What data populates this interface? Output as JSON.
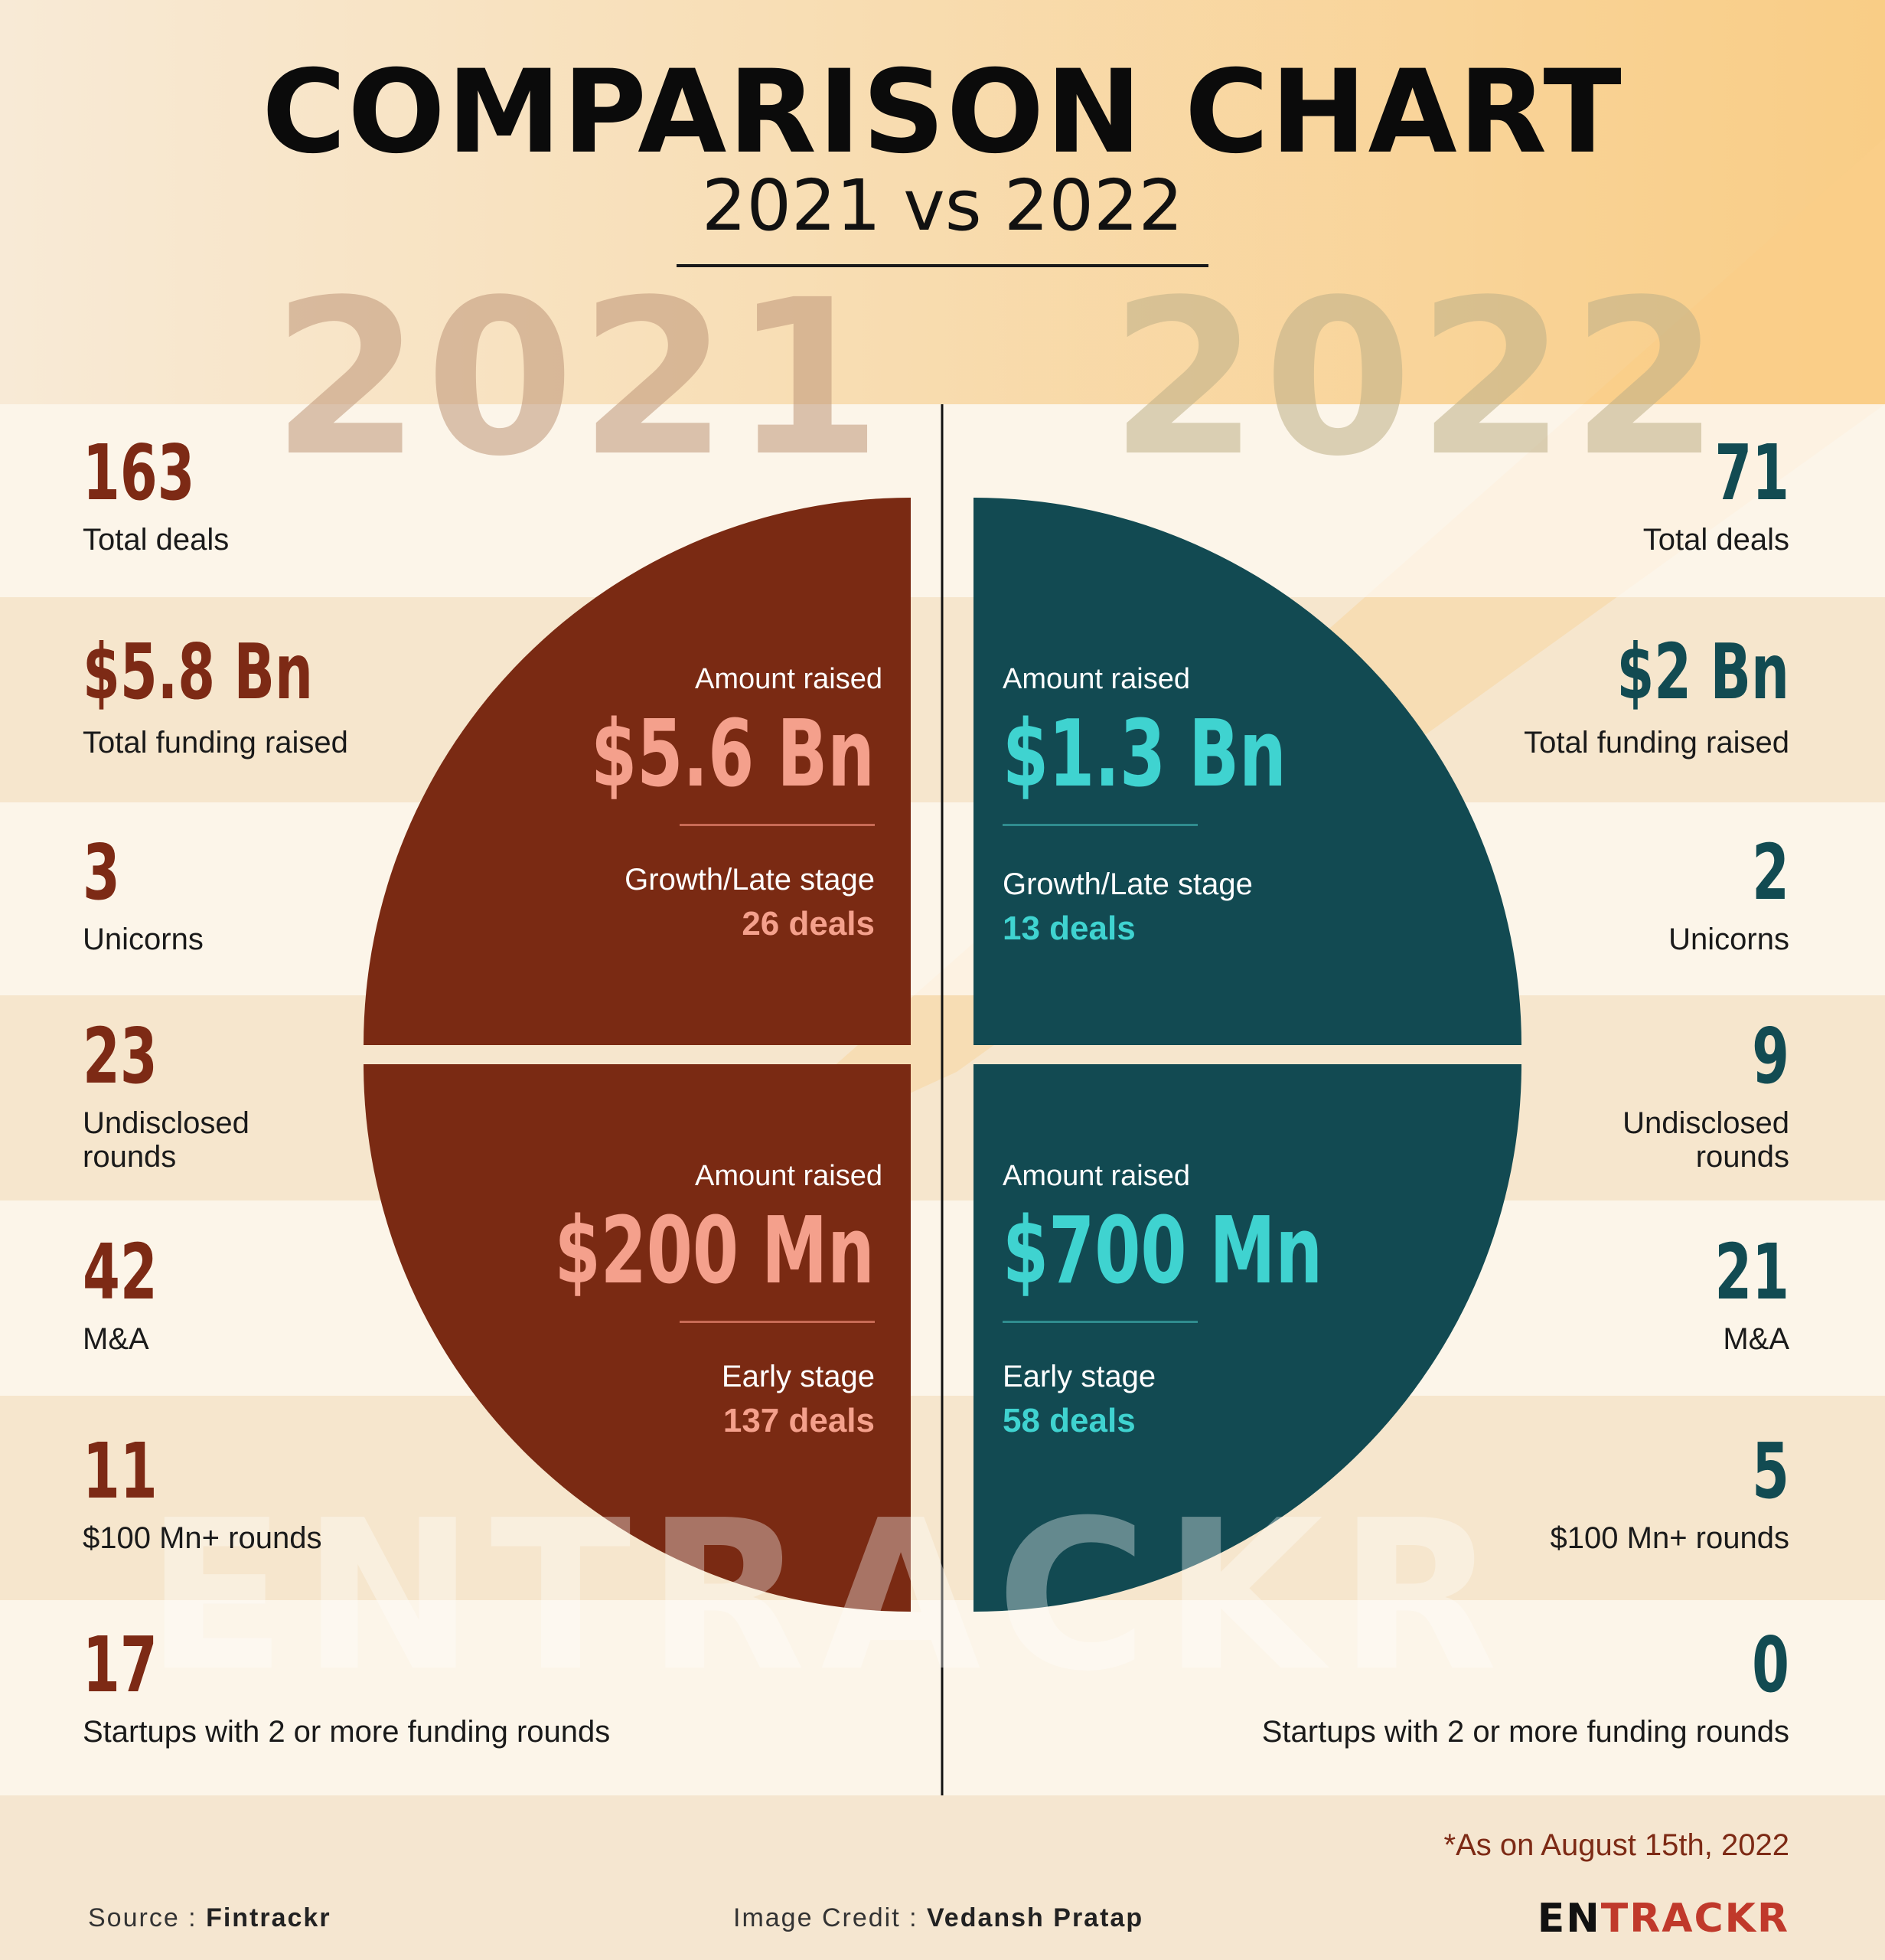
{
  "title": "COMPARISON CHART",
  "subtitle": "2021 vs 2022",
  "ghost_years": {
    "left": "2021",
    "right": "2022"
  },
  "watermark": "ENTRACKR",
  "colors": {
    "left_accent": "#7d2a15",
    "left_light": "#f4a08c",
    "right_accent": "#124b52",
    "right_light": "#3fd3d0",
    "background": "#f6e8d3",
    "highlight": "#f9cc85"
  },
  "left_stats": [
    {
      "value": "163",
      "label": "Total deals"
    },
    {
      "value": "$5.8 Bn",
      "label": "Total funding raised"
    },
    {
      "value": "3",
      "label": "Unicorns"
    },
    {
      "value": "23",
      "label": "Undisclosed\nrounds"
    },
    {
      "value": "42",
      "label": "M&A"
    },
    {
      "value": "11",
      "label": "$100 Mn+ rounds"
    },
    {
      "value": "17",
      "label": "Startups with 2 or more funding rounds"
    }
  ],
  "right_stats": [
    {
      "value": "71",
      "label": "Total deals"
    },
    {
      "value": "$2 Bn",
      "label": "Total funding raised"
    },
    {
      "value": "2",
      "label": "Unicorns"
    },
    {
      "value": "9",
      "label": "Undisclosed\nrounds"
    },
    {
      "value": "21",
      "label": "M&A"
    },
    {
      "value": "5",
      "label": "$100 Mn+ rounds"
    },
    {
      "value": "0",
      "label": "Startups with 2 or more funding rounds"
    }
  ],
  "quadrants": {
    "left_top": {
      "heading": "Amount raised",
      "amount": "$5.6 Bn",
      "stage": "Growth/Late stage",
      "deals": "26 deals"
    },
    "left_bottom": {
      "heading": "Amount raised",
      "amount": "$200 Mn",
      "stage": "Early stage",
      "deals": "137 deals"
    },
    "right_top": {
      "heading": "Amount raised",
      "amount": "$1.3 Bn",
      "stage": "Growth/Late stage",
      "deals": "13 deals"
    },
    "right_bottom": {
      "heading": "Amount raised",
      "amount": "$700 Mn",
      "stage": "Early stage",
      "deals": "58 deals"
    }
  },
  "footnote": "*As on August 15th, 2022",
  "footer": {
    "source_label": "Source : ",
    "source_value": "Fintrackr",
    "credit_label": "Image Credit : ",
    "credit_value": "Vedansh Pratap",
    "brand_part1": "EN",
    "brand_part2": "TRACKR"
  }
}
